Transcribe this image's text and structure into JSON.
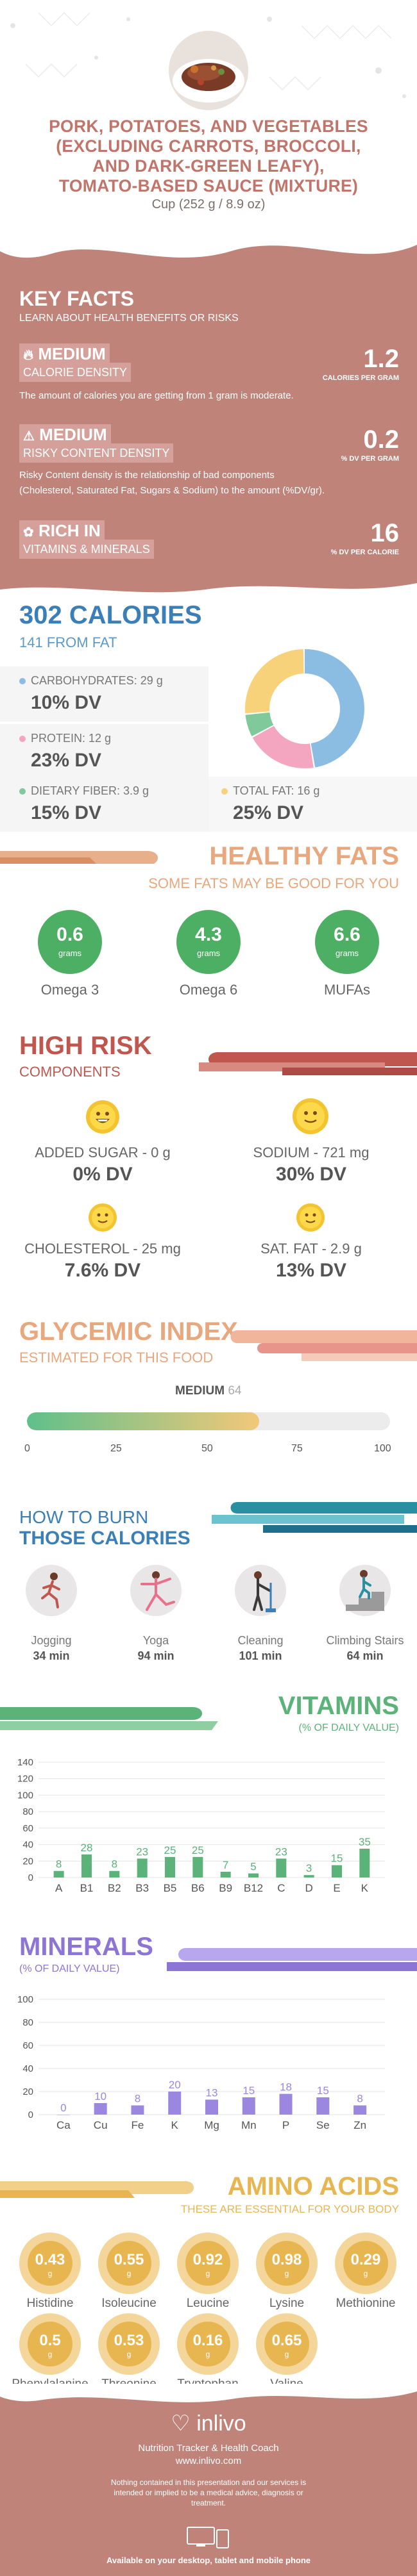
{
  "header": {
    "title_lines": [
      "PORK, POTATOES, AND VEGETABLES",
      "(EXCLUDING CARROTS, BROCCOLI,",
      "AND DARK-GREEN LEAFY),",
      "TOMATO-BASED SAUCE (MIXTURE)"
    ],
    "serving": "Cup (252 g / 8.9 oz)"
  },
  "key_facts": {
    "title": "KEY FACTS",
    "subtitle": "LEARN ABOUT HEALTH BENEFITS OR RISKS",
    "calorie_density": {
      "level": "MEDIUM",
      "label": "CALORIE DENSITY",
      "value": "1.2",
      "unit": "CALORIES PER GRAM",
      "description": "The amount of calories you are getting from 1 gram is moderate."
    },
    "risky_density": {
      "level": "MEDIUM",
      "label": "RISKY CONTENT DENSITY",
      "value": "0.2",
      "unit": "% DV PER GRAM",
      "description_1": "Risky Content density is the relationship of bad components",
      "description_2": "(Cholesterol, Saturated Fat, Sugars & Sodium) to the amount (%DV/gr)."
    },
    "rich_in": {
      "level": "RICH IN",
      "label": "VITAMINS & MINERALS",
      "value": "16",
      "unit": "% DV PER CALORIE"
    }
  },
  "calories": {
    "title": "302 CALORIES",
    "subtitle": "141 FROM FAT",
    "carbs": {
      "label": "CARBOHYDRATES: 29 g",
      "dv": "10% DV",
      "color": "#8bbde3"
    },
    "protein": {
      "label": "PROTEIN: 12 g",
      "dv": "23% DV",
      "color": "#f4a6c1"
    },
    "fiber": {
      "label": "DIETARY FIBER: 3.9 g",
      "dv": "15% DV",
      "color": "#7fc99a"
    },
    "fat": {
      "label": "TOTAL FAT: 16 g",
      "dv": "25% DV",
      "color": "#f7d27a"
    },
    "donut": [
      {
        "name": "carbs",
        "value": 29,
        "color": "#8bbde3"
      },
      {
        "name": "protein",
        "value": 12,
        "color": "#f4a6c1"
      },
      {
        "name": "fiber",
        "value": 3.9,
        "color": "#7fc99a"
      },
      {
        "name": "fat",
        "value": 16,
        "color": "#f7d27a"
      }
    ]
  },
  "healthy_fats": {
    "title": "HEALTHY FATS",
    "subtitle": "SOME FATS MAY BE GOOD FOR YOU",
    "items": [
      {
        "value": "0.6",
        "unit": "grams",
        "label": "Omega 3"
      },
      {
        "value": "4.3",
        "unit": "grams",
        "label": "Omega 6"
      },
      {
        "value": "6.6",
        "unit": "grams",
        "label": "MUFAs"
      }
    ]
  },
  "high_risk": {
    "title": "HIGH RISK",
    "subtitle": "COMPONENTS",
    "items": [
      {
        "name": "ADDED SUGAR - 0 g",
        "dv": "0% DV",
        "mood": "happy"
      },
      {
        "name": "SODIUM - 721 mg",
        "dv": "30% DV",
        "mood": "neutral"
      },
      {
        "name": "CHOLESTEROL - 25 mg",
        "dv": "7.6% DV",
        "mood": "neutral"
      },
      {
        "name": "SAT. FAT - 2.9 g",
        "dv": "13% DV",
        "mood": "neutral"
      }
    ]
  },
  "glycemic": {
    "title": "GLYCEMIC INDEX",
    "subtitle": "ESTIMATED FOR THIS FOOD",
    "level": "MEDIUM",
    "value": "64",
    "value_num": 64,
    "ticks": [
      "0",
      "25",
      "50",
      "75",
      "100"
    ]
  },
  "burn": {
    "title_1": "HOW TO BURN",
    "title_2": "THOSE CALORIES",
    "items": [
      {
        "label": "Jogging",
        "minutes": "34 min",
        "icon": "jogging-icon"
      },
      {
        "label": "Yoga",
        "minutes": "94 min",
        "icon": "yoga-icon"
      },
      {
        "label": "Cleaning",
        "minutes": "101 min",
        "icon": "cleaning-icon"
      },
      {
        "label": "Climbing Stairs",
        "minutes": "64 min",
        "icon": "stairs-icon"
      }
    ]
  },
  "vitamins": {
    "title": "VITAMINS",
    "subtitle": "(% OF DAILY VALUE)"
  },
  "minerals": {
    "title": "MINERALS",
    "subtitle": "(% OF DAILY VALUE)"
  },
  "chart_data": [
    {
      "type": "bar",
      "title": "VITAMINS",
      "categories": [
        "A",
        "B1",
        "B2",
        "B3",
        "B5",
        "B6",
        "B9",
        "B12",
        "C",
        "D",
        "E",
        "K"
      ],
      "values": [
        8,
        28,
        8,
        23,
        25,
        25,
        7,
        5,
        23,
        3,
        15,
        35
      ],
      "yticks": [
        0,
        20,
        40,
        60,
        80,
        100,
        120,
        140
      ],
      "ylim": [
        0,
        140
      ],
      "color": "#5bb37a"
    },
    {
      "type": "bar",
      "title": "MINERALS",
      "categories": [
        "Ca",
        "Cu",
        "Fe",
        "K",
        "Mg",
        "Mn",
        "P",
        "Se",
        "Zn"
      ],
      "values": [
        0,
        10,
        8,
        20,
        13,
        15,
        18,
        15,
        8
      ],
      "yticks": [
        0,
        20,
        40,
        60,
        80,
        100
      ],
      "ylim": [
        0,
        100
      ],
      "color": "#9b86e0"
    }
  ],
  "amino_acids": {
    "title": "AMINO ACIDS",
    "subtitle": "THESE ARE ESSENTIAL FOR YOUR BODY",
    "unit": "g",
    "items": [
      {
        "value": "0.43",
        "label": "Histidine"
      },
      {
        "value": "0.55",
        "label": "Isoleucine"
      },
      {
        "value": "0.92",
        "label": "Leucine"
      },
      {
        "value": "0.98",
        "label": "Lysine"
      },
      {
        "value": "0.29",
        "label": "Methionine"
      },
      {
        "value": "0.5",
        "label": "Phenylalanine"
      },
      {
        "value": "0.53",
        "label": "Threonine"
      },
      {
        "value": "0.16",
        "label": "Tryptophan"
      },
      {
        "value": "0.65",
        "label": "Valine"
      }
    ]
  },
  "footer": {
    "brand": "inlivo",
    "tagline": "Nutrition Tracker & Health Coach",
    "url": "www.inlivo.com",
    "disclaimer": "Nothing contained in this presentation and our services is intended or implied to be a medical advice, diagnosis or treatment.",
    "availability": "Available on your desktop, tablet and mobile phone"
  }
}
